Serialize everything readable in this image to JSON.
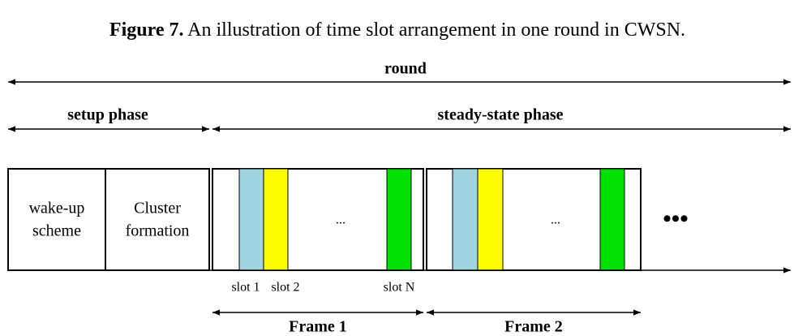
{
  "caption": {
    "label": "Figure 7.",
    "text": "An illustration of time slot arrangement in one round in CWSN."
  },
  "spans": {
    "round": "round",
    "setup": "setup phase",
    "steady": "steady-state phase"
  },
  "blocks": {
    "wakeup": [
      "wake-up",
      "scheme"
    ],
    "cluster": [
      "Cluster",
      "formation"
    ]
  },
  "ellipsis": "...",
  "more": "•••",
  "slots": {
    "slot1": "slot 1",
    "slot2": "slot 2",
    "slotN": "slot N"
  },
  "frames": {
    "frame1": "Frame 1",
    "frame2": "Frame 2"
  }
}
